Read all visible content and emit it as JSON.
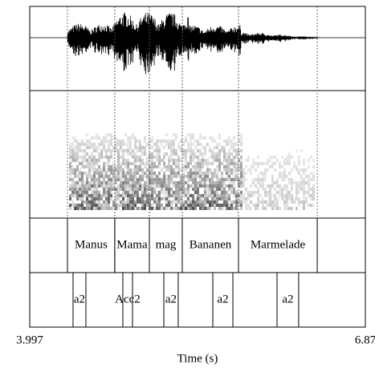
{
  "chart_data": {
    "type": "textgrid",
    "xlim": [
      3.997,
      6.87
    ],
    "xticks": [
      3.997,
      6.87
    ],
    "xlabel": "Time (s)",
    "tiers": [
      {
        "intervals": [
          {
            "label": "Manus",
            "start": 4.32,
            "end": 4.725
          },
          {
            "label": "Mama",
            "start": 4.725,
            "end": 5.021
          },
          {
            "label": "mag",
            "start": 5.021,
            "end": 5.303
          },
          {
            "label": "Bananen",
            "start": 5.303,
            "end": 5.784
          },
          {
            "label": "Marmelade",
            "start": 5.784,
            "end": 6.458
          }
        ]
      },
      {
        "intervals": [
          {
            "label": "a2",
            "start": 4.368,
            "end": 4.478
          },
          {
            "label": "Acc2",
            "start": 4.794,
            "end": 4.877
          },
          {
            "label": "a2",
            "start": 5.145,
            "end": 5.268
          },
          {
            "label": "a2",
            "start": 5.564,
            "end": 5.736
          },
          {
            "label": "a2",
            "start": 6.114,
            "end": 6.299
          }
        ]
      }
    ]
  }
}
